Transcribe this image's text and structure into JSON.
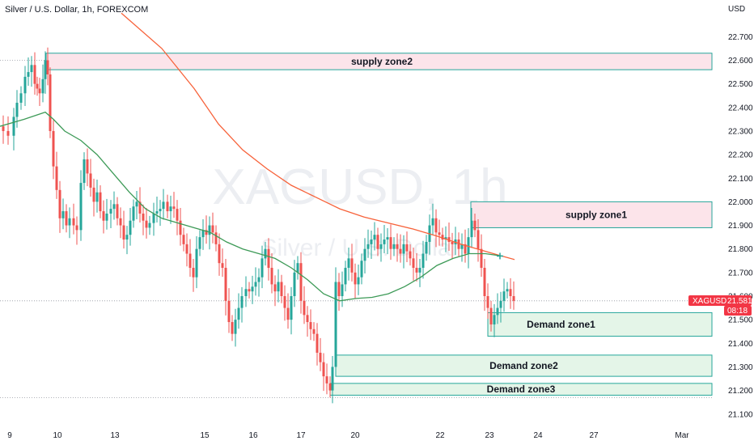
{
  "header": {
    "title": "Silver / U.S. Dollar, 1h, FOREXCOM",
    "currency": "USD"
  },
  "watermark": {
    "symbol": "XAGUSD, 1h",
    "name": "Silver / U.S. Dollar"
  },
  "chart_data": {
    "type": "candlestick",
    "title": "Silver / U.S. Dollar, 1h, FOREXCOM",
    "y_unit": "USD",
    "ylim": [
      21.08,
      22.82
    ],
    "y_ticks": [
      "22.700",
      "22.600",
      "22.500",
      "22.400",
      "22.300",
      "22.200",
      "22.100",
      "22.000",
      "21.900",
      "21.800",
      "21.700",
      "21.600",
      "21.500",
      "21.400",
      "21.300",
      "21.200",
      "21.100"
    ],
    "x_ticks": [
      "9",
      "10",
      "13",
      "15",
      "16",
      "17",
      "20",
      "22",
      "23",
      "24",
      "27",
      "Mar"
    ],
    "grid": false,
    "price_path": [
      [
        0,
        22.32
      ],
      [
        4,
        22.3
      ],
      [
        10,
        22.28
      ],
      [
        17,
        22.36
      ],
      [
        21,
        22.42
      ],
      [
        26,
        22.46
      ],
      [
        31,
        22.53
      ],
      [
        35,
        22.55
      ],
      [
        39,
        22.58
      ],
      [
        43,
        22.5
      ],
      [
        46,
        22.48
      ],
      [
        49,
        22.46
      ],
      [
        53,
        22.52
      ],
      [
        56,
        22.6
      ],
      [
        59,
        22.54
      ],
      [
        62,
        22.3
      ],
      [
        66,
        22.15
      ],
      [
        70,
        22.05
      ],
      [
        74,
        21.93
      ],
      [
        78,
        21.96
      ],
      [
        82,
        21.9
      ],
      [
        86,
        21.93
      ],
      [
        91,
        21.9
      ],
      [
        95,
        21.88
      ],
      [
        100,
        22.08
      ],
      [
        104,
        22.18
      ],
      [
        108,
        22.12
      ],
      [
        112,
        22.06
      ],
      [
        116,
        22.0
      ],
      [
        120,
        22.04
      ],
      [
        124,
        21.96
      ],
      [
        128,
        21.92
      ],
      [
        132,
        21.95
      ],
      [
        137,
        21.97
      ],
      [
        141,
        21.99
      ],
      [
        145,
        21.93
      ],
      [
        149,
        21.9
      ],
      [
        153,
        21.84
      ],
      [
        157,
        21.86
      ],
      [
        161,
        21.92
      ],
      [
        165,
        21.98
      ],
      [
        169,
        22.0
      ],
      [
        173,
        21.95
      ],
      [
        177,
        21.92
      ],
      [
        181,
        21.89
      ],
      [
        185,
        21.91
      ],
      [
        190,
        21.95
      ],
      [
        194,
        21.96
      ],
      [
        198,
        21.97
      ],
      [
        202,
        22.0
      ],
      [
        207,
        21.96
      ],
      [
        211,
        21.98
      ],
      [
        215,
        21.97
      ],
      [
        219,
        21.92
      ],
      [
        223,
        21.86
      ],
      [
        227,
        21.82
      ],
      [
        231,
        21.78
      ],
      [
        235,
        21.72
      ],
      [
        239,
        21.68
      ],
      [
        243,
        21.8
      ],
      [
        247,
        21.85
      ],
      [
        251,
        21.88
      ],
      [
        255,
        21.86
      ],
      [
        259,
        21.9
      ],
      [
        263,
        21.87
      ],
      [
        267,
        21.82
      ],
      [
        271,
        21.74
      ],
      [
        275,
        21.72
      ],
      [
        279,
        21.58
      ],
      [
        283,
        21.49
      ],
      [
        287,
        21.44
      ],
      [
        291,
        21.5
      ],
      [
        295,
        21.55
      ],
      [
        299,
        21.6
      ],
      [
        304,
        21.63
      ],
      [
        308,
        21.62
      ],
      [
        312,
        21.64
      ],
      [
        316,
        21.66
      ],
      [
        320,
        21.68
      ],
      [
        324,
        21.76
      ],
      [
        328,
        21.8
      ],
      [
        332,
        21.72
      ],
      [
        336,
        21.65
      ],
      [
        340,
        21.62
      ],
      [
        344,
        21.66
      ],
      [
        348,
        21.6
      ],
      [
        352,
        21.55
      ],
      [
        356,
        21.5
      ],
      [
        360,
        21.6
      ],
      [
        364,
        21.7
      ],
      [
        368,
        21.74
      ],
      [
        372,
        21.58
      ],
      [
        376,
        21.52
      ],
      [
        380,
        21.49
      ],
      [
        384,
        21.46
      ],
      [
        388,
        21.44
      ],
      [
        392,
        21.36
      ],
      [
        396,
        21.32
      ],
      [
        400,
        21.26
      ],
      [
        404,
        21.23
      ],
      [
        408,
        21.2
      ],
      [
        411,
        21.3
      ],
      [
        415,
        21.66
      ],
      [
        419,
        21.6
      ],
      [
        423,
        21.65
      ],
      [
        427,
        21.72
      ],
      [
        431,
        21.76
      ],
      [
        435,
        21.7
      ],
      [
        439,
        21.65
      ],
      [
        443,
        21.68
      ],
      [
        447,
        21.75
      ],
      [
        451,
        21.8
      ],
      [
        455,
        21.82
      ],
      [
        459,
        21.84
      ],
      [
        463,
        21.86
      ],
      [
        467,
        21.8
      ],
      [
        471,
        21.82
      ],
      [
        475,
        21.84
      ],
      [
        479,
        21.85
      ],
      [
        483,
        21.8
      ],
      [
        487,
        21.82
      ],
      [
        491,
        21.8
      ],
      [
        495,
        21.78
      ],
      [
        499,
        21.82
      ],
      [
        503,
        21.79
      ],
      [
        507,
        21.76
      ],
      [
        511,
        21.72
      ],
      [
        515,
        21.7
      ],
      [
        519,
        21.72
      ],
      [
        523,
        21.78
      ],
      [
        527,
        21.83
      ],
      [
        531,
        21.9
      ],
      [
        535,
        21.93
      ],
      [
        539,
        21.87
      ],
      [
        543,
        21.86
      ],
      [
        547,
        21.84
      ],
      [
        551,
        21.85
      ],
      [
        555,
        21.83
      ],
      [
        559,
        21.82
      ],
      [
        563,
        21.84
      ],
      [
        567,
        21.8
      ],
      [
        571,
        21.82
      ],
      [
        575,
        21.78
      ],
      [
        579,
        21.85
      ],
      [
        583,
        21.92
      ],
      [
        587,
        21.88
      ],
      [
        591,
        21.8
      ],
      [
        595,
        21.72
      ],
      [
        599,
        21.6
      ],
      [
        603,
        21.55
      ],
      [
        607,
        21.48
      ],
      [
        611,
        21.52
      ],
      [
        615,
        21.55
      ],
      [
        619,
        21.58
      ],
      [
        623,
        21.62
      ],
      [
        627,
        21.63
      ],
      [
        631,
        21.6
      ],
      [
        635,
        21.58
      ]
    ],
    "series": [
      {
        "name": "",
        "color": "#f7623a",
        "points": [
          [
            150,
            22.8
          ],
          [
            200,
            22.65
          ],
          [
            240,
            22.48
          ],
          [
            270,
            22.33
          ],
          [
            300,
            22.22
          ],
          [
            330,
            22.14
          ],
          [
            360,
            22.07
          ],
          [
            390,
            22.02
          ],
          [
            420,
            21.97
          ],
          [
            450,
            21.935
          ],
          [
            480,
            21.91
          ],
          [
            510,
            21.885
          ],
          [
            540,
            21.855
          ],
          [
            570,
            21.82
          ],
          [
            600,
            21.79
          ],
          [
            620,
            21.77
          ],
          [
            636,
            21.755
          ]
        ]
      },
      {
        "name": "",
        "color": "#3d9a57",
        "points": [
          [
            0,
            22.32
          ],
          [
            30,
            22.35
          ],
          [
            56,
            22.38
          ],
          [
            66,
            22.35
          ],
          [
            80,
            22.3
          ],
          [
            100,
            22.26
          ],
          [
            120,
            22.2
          ],
          [
            140,
            22.12
          ],
          [
            160,
            22.04
          ],
          [
            180,
            21.97
          ],
          [
            200,
            21.93
          ],
          [
            220,
            21.91
          ],
          [
            240,
            21.89
          ],
          [
            260,
            21.87
          ],
          [
            280,
            21.83
          ],
          [
            300,
            21.8
          ],
          [
            320,
            21.78
          ],
          [
            340,
            21.76
          ],
          [
            360,
            21.72
          ],
          [
            380,
            21.67
          ],
          [
            400,
            21.61
          ],
          [
            420,
            21.58
          ],
          [
            440,
            21.59
          ],
          [
            460,
            21.595
          ],
          [
            480,
            21.61
          ],
          [
            500,
            21.64
          ],
          [
            520,
            21.68
          ],
          [
            540,
            21.73
          ],
          [
            560,
            21.76
          ],
          [
            580,
            21.78
          ],
          [
            600,
            21.78
          ],
          [
            620,
            21.77
          ]
        ]
      }
    ],
    "zones": [
      {
        "label": "supply zone2",
        "type": "supply",
        "from": 22.56,
        "to": 22.63,
        "x_start_tick": "10"
      },
      {
        "label": "supply zone1",
        "type": "supply",
        "from": 21.89,
        "to": 22.0,
        "x_start_tick": "23"
      },
      {
        "label": "Demand zone1",
        "type": "demand",
        "from": 21.43,
        "to": 21.53,
        "x_start_tick": "23"
      },
      {
        "label": "Demand zone2",
        "type": "demand",
        "from": 21.26,
        "to": 21.35,
        "x_start_tick": "20"
      },
      {
        "label": "Demand zone3",
        "type": "demand",
        "from": 21.18,
        "to": 21.23,
        "x_start_tick": "20"
      }
    ],
    "dotted_levels": [
      22.6,
      21.58,
      21.17
    ],
    "last_price": {
      "symbol": "XAGUSD",
      "value": "21.581",
      "countdown": "08:18"
    }
  },
  "colors": {
    "up": "#26a69a",
    "down": "#ef5350",
    "supply_fill": "#fce4ea",
    "supply_border": "#26a69a",
    "demand_fill": "#e4f5e8",
    "demand_border": "#26a69a",
    "price_tag": "#f23645"
  }
}
